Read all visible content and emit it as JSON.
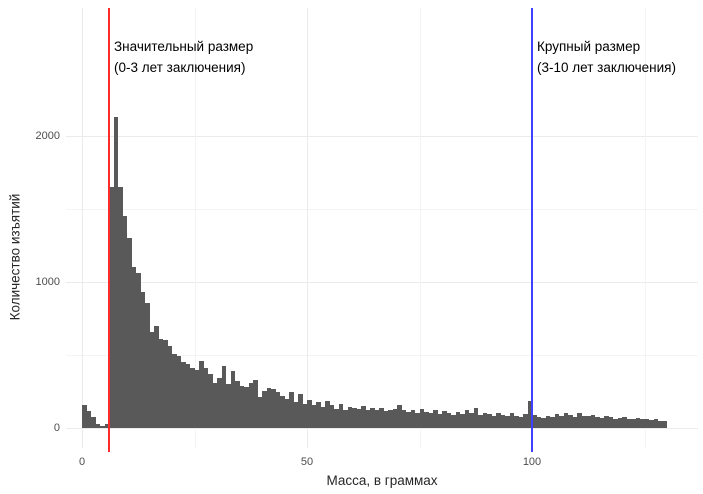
{
  "chart_data": {
    "type": "bar",
    "subtype": "histogram",
    "title": "",
    "xlabel": "Масса, в граммах",
    "ylabel": "Количество изъятий",
    "x_ticks": [
      0,
      50,
      100
    ],
    "x_minor_ticks": [
      25,
      75,
      125
    ],
    "y_ticks": [
      0,
      1000,
      2000
    ],
    "y_minor_ticks": [
      500,
      1500
    ],
    "xlim": [
      -6,
      137
    ],
    "ylim": [
      0,
      2850
    ],
    "grid": "on",
    "legend": "none",
    "bin_width_grams": 1,
    "bins_start_gram": 0,
    "bar_color": "#595959",
    "background_color": "#ffffff",
    "values": [
      155,
      115,
      75,
      25,
      12,
      30,
      1650,
      2130,
      1650,
      1450,
      1300,
      1100,
      1060,
      930,
      855,
      660,
      700,
      610,
      600,
      560,
      510,
      490,
      455,
      440,
      410,
      400,
      460,
      410,
      370,
      310,
      345,
      425,
      300,
      390,
      320,
      290,
      280,
      310,
      330,
      210,
      255,
      275,
      265,
      245,
      220,
      200,
      245,
      175,
      230,
      165,
      190,
      155,
      175,
      145,
      185,
      155,
      130,
      165,
      120,
      145,
      140,
      130,
      150,
      125,
      135,
      120,
      140,
      115,
      125,
      130,
      160,
      120,
      110,
      125,
      105,
      130,
      110,
      100,
      120,
      95,
      115,
      100,
      90,
      110,
      95,
      120,
      100,
      135,
      90,
      100,
      95,
      85,
      105,
      90,
      80,
      100,
      85,
      75,
      95,
      185,
      90,
      75,
      70,
      85,
      75,
      95,
      80,
      100,
      90,
      75,
      100,
      85,
      80,
      90,
      75,
      70,
      85,
      75,
      65,
      70,
      75,
      65,
      60,
      70,
      65,
      60,
      55,
      60,
      50,
      45
    ],
    "annotations": [
      {
        "name": "significant-size",
        "text": "Значительный размер\n(0-3 лет заключения)",
        "x_gram": 6,
        "line_color": "#ff2b2b"
      },
      {
        "name": "large-size",
        "text": "Крупный размер\n(3-10 лет заключения)",
        "x_gram": 100,
        "line_color": "#4040ff"
      }
    ]
  }
}
